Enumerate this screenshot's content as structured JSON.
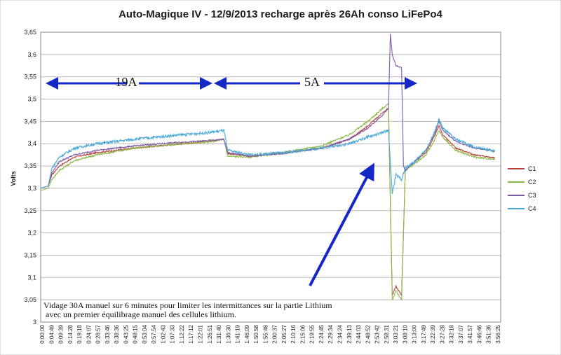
{
  "chart_data": {
    "type": "line",
    "title": "Auto-Magique IV - 12/9/2013  recharge après 26Ah conso LiFePo4",
    "ylabel": "Volts",
    "xlabel": "",
    "ylim": [
      3.0,
      3.65
    ],
    "yticks": [
      "3",
      "3,05",
      "3,1",
      "3,15",
      "3,2",
      "3,25",
      "3,3",
      "3,35",
      "3,4",
      "3,45",
      "3,5",
      "3,55",
      "3,6",
      "3,65"
    ],
    "xticks": [
      "0:00:00",
      "0:04:49",
      "0:09:39",
      "0:14:28",
      "0:19:18",
      "0:24:07",
      "0:28:57",
      "0:33:46",
      "0:38:36",
      "0:43:25",
      "0:48:15",
      "0:53:04",
      "0:57:54",
      "1:02:43",
      "1:07:33",
      "1:12:22",
      "1:17:12",
      "1:22:01",
      "1:26:51",
      "1:31:40",
      "1:36:30",
      "1:41:19",
      "1:46:09",
      "1:50:58",
      "1:55:48",
      "2:00:37",
      "2:05:27",
      "2:10:16",
      "2:15:06",
      "2:19:55",
      "2:24:45",
      "2:29:34",
      "2:34:24",
      "2:39:13",
      "2:44:03",
      "2:48:52",
      "2:53:42",
      "2:58:31",
      "3:03:21",
      "3:08:10",
      "3:13:00",
      "3:17:49",
      "3:22:39",
      "3:27:28",
      "3:32:18",
      "3:37:07",
      "3:41:57",
      "3:46:46",
      "3:51:36",
      "3:56:25"
    ],
    "grid": "horizontal",
    "legend_position": "right",
    "series": [
      {
        "name": "C1",
        "color": "#b5433c",
        "points": [
          [
            0,
            3.3
          ],
          [
            4,
            3.305
          ],
          [
            6,
            3.33
          ],
          [
            10,
            3.35
          ],
          [
            18,
            3.37
          ],
          [
            30,
            3.38
          ],
          [
            50,
            3.39
          ],
          [
            70,
            3.398
          ],
          [
            90,
            3.405
          ],
          [
            98,
            3.41
          ],
          [
            100,
            3.378
          ],
          [
            112,
            3.372
          ],
          [
            130,
            3.38
          ],
          [
            150,
            3.39
          ],
          [
            165,
            3.41
          ],
          [
            175,
            3.44
          ],
          [
            183,
            3.47
          ],
          [
            186,
            3.48
          ],
          [
            188,
            3.06
          ],
          [
            190,
            3.08
          ],
          [
            193,
            3.06
          ],
          [
            195,
            3.34
          ],
          [
            200,
            3.36
          ],
          [
            206,
            3.38
          ],
          [
            211,
            3.42
          ],
          [
            213,
            3.44
          ],
          [
            215,
            3.42
          ],
          [
            222,
            3.39
          ],
          [
            232,
            3.375
          ],
          [
            243,
            3.368
          ]
        ]
      },
      {
        "name": "C2",
        "color": "#8fb84b",
        "points": [
          [
            0,
            3.295
          ],
          [
            4,
            3.3
          ],
          [
            6,
            3.32
          ],
          [
            10,
            3.34
          ],
          [
            18,
            3.362
          ],
          [
            30,
            3.375
          ],
          [
            50,
            3.39
          ],
          [
            70,
            3.398
          ],
          [
            90,
            3.404
          ],
          [
            98,
            3.41
          ],
          [
            100,
            3.372
          ],
          [
            112,
            3.37
          ],
          [
            130,
            3.38
          ],
          [
            150,
            3.395
          ],
          [
            165,
            3.42
          ],
          [
            175,
            3.45
          ],
          [
            183,
            3.48
          ],
          [
            186,
            3.49
          ],
          [
            188,
            3.05
          ],
          [
            190,
            3.07
          ],
          [
            193,
            3.05
          ],
          [
            195,
            3.34
          ],
          [
            200,
            3.355
          ],
          [
            206,
            3.375
          ],
          [
            211,
            3.41
          ],
          [
            213,
            3.43
          ],
          [
            215,
            3.415
          ],
          [
            222,
            3.385
          ],
          [
            232,
            3.37
          ],
          [
            243,
            3.365
          ]
        ]
      },
      {
        "name": "C3",
        "color": "#7e5aa6",
        "points": [
          [
            0,
            3.3
          ],
          [
            4,
            3.305
          ],
          [
            6,
            3.335
          ],
          [
            10,
            3.36
          ],
          [
            18,
            3.375
          ],
          [
            30,
            3.385
          ],
          [
            50,
            3.395
          ],
          [
            70,
            3.402
          ],
          [
            90,
            3.407
          ],
          [
            98,
            3.41
          ],
          [
            100,
            3.38
          ],
          [
            112,
            3.372
          ],
          [
            130,
            3.378
          ],
          [
            150,
            3.39
          ],
          [
            165,
            3.41
          ],
          [
            175,
            3.435
          ],
          [
            183,
            3.465
          ],
          [
            186,
            3.48
          ],
          [
            187,
            3.645
          ],
          [
            188,
            3.6
          ],
          [
            190,
            3.575
          ],
          [
            193,
            3.57
          ],
          [
            194,
            3.35
          ],
          [
            195,
            3.34
          ],
          [
            200,
            3.36
          ],
          [
            206,
            3.385
          ],
          [
            211,
            3.425
          ],
          [
            213,
            3.45
          ],
          [
            215,
            3.43
          ],
          [
            222,
            3.405
          ],
          [
            232,
            3.39
          ],
          [
            243,
            3.383
          ]
        ]
      },
      {
        "name": "C4",
        "color": "#4aa9d6",
        "points": [
          [
            0,
            3.3
          ],
          [
            4,
            3.305
          ],
          [
            6,
            3.345
          ],
          [
            10,
            3.37
          ],
          [
            18,
            3.39
          ],
          [
            30,
            3.4
          ],
          [
            50,
            3.41
          ],
          [
            70,
            3.418
          ],
          [
            90,
            3.425
          ],
          [
            98,
            3.43
          ],
          [
            100,
            3.385
          ],
          [
            112,
            3.375
          ],
          [
            130,
            3.38
          ],
          [
            150,
            3.39
          ],
          [
            165,
            3.4
          ],
          [
            175,
            3.415
          ],
          [
            183,
            3.425
          ],
          [
            186,
            3.43
          ],
          [
            188,
            3.29
          ],
          [
            190,
            3.33
          ],
          [
            193,
            3.32
          ],
          [
            195,
            3.345
          ],
          [
            200,
            3.36
          ],
          [
            206,
            3.385
          ],
          [
            211,
            3.43
          ],
          [
            213,
            3.455
          ],
          [
            215,
            3.435
          ],
          [
            222,
            3.41
          ],
          [
            232,
            3.392
          ],
          [
            243,
            3.384
          ]
        ]
      }
    ],
    "annotations": [
      {
        "text": "19A"
      },
      {
        "text": "5A"
      },
      {
        "text": "Vidage 30A manuel sur 6 minutes pour limiter les intermittances sur la partie Lithium"
      },
      {
        "text": " avec un premier équilibrage manuel des cellules lithium."
      }
    ]
  }
}
